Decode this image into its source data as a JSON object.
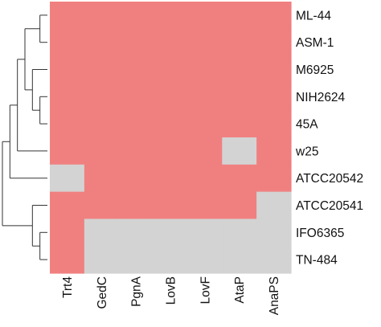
{
  "chart_data": {
    "type": "heatmap",
    "title": "",
    "xlabel": "",
    "ylabel": "",
    "columns": [
      "Trt4",
      "GedC",
      "PgnA",
      "LovB",
      "LovF",
      "AtaP",
      "AnaPS"
    ],
    "rows": [
      "ML-44",
      "ASM-1",
      "M6925",
      "NIH2624",
      "45A",
      "w25",
      "ATCC20542",
      "ATCC20541",
      "IFO6365",
      "TN-484"
    ],
    "values": [
      [
        1,
        1,
        1,
        1,
        1,
        1,
        1
      ],
      [
        1,
        1,
        1,
        1,
        1,
        1,
        1
      ],
      [
        1,
        1,
        1,
        1,
        1,
        1,
        1
      ],
      [
        1,
        1,
        1,
        1,
        1,
        1,
        1
      ],
      [
        1,
        1,
        1,
        1,
        1,
        1,
        1
      ],
      [
        1,
        1,
        1,
        1,
        1,
        0,
        1
      ],
      [
        0,
        1,
        1,
        1,
        1,
        1,
        1
      ],
      [
        1,
        1,
        1,
        1,
        1,
        1,
        0
      ],
      [
        1,
        0,
        0,
        0,
        0,
        0,
        0
      ],
      [
        1,
        0,
        0,
        0,
        0,
        0,
        0
      ]
    ],
    "colors": {
      "present": "#f08080",
      "absent": "#d3d3d3",
      "dendrogram": "#333333"
    },
    "row_dendrogram": "(((((ML-44,ASM-1),(M6925,(NIH2624,45A))),w25),ATCC20542),(ATCC20541,(IFO6365,TN-484)))",
    "legend": "none",
    "grid": false
  }
}
